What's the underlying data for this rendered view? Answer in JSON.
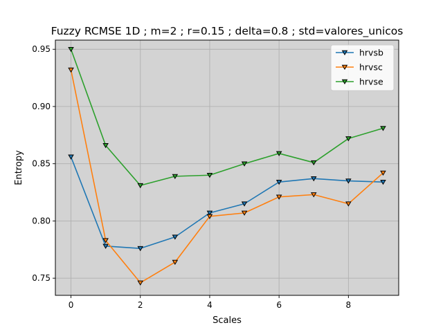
{
  "chart_data": {
    "type": "line",
    "title": "Fuzzy RCMSE 1D ; m=2 ; r=0.15 ; delta=0.8 ; std=valores_unicos",
    "xlabel": "Scales",
    "ylabel": "Entropy",
    "x": [
      0,
      1,
      2,
      3,
      4,
      5,
      6,
      7,
      8,
      9
    ],
    "xlim": [
      -0.45,
      9.45
    ],
    "ylim": [
      0.735,
      0.958
    ],
    "xticks": [
      0,
      2,
      4,
      6,
      8
    ],
    "yticks": [
      0.75,
      0.8,
      0.85,
      0.9,
      0.95
    ],
    "ytick_labels": [
      "0.75",
      "0.80",
      "0.85",
      "0.90",
      "0.95"
    ],
    "grid": true,
    "background": "#d3d3d3",
    "legend_position": "upper-right",
    "marker": "triangle-down",
    "series": [
      {
        "name": "hrvsb",
        "color": "#1f77b4",
        "values": [
          0.856,
          0.778,
          0.776,
          0.786,
          0.807,
          0.815,
          0.834,
          0.837,
          0.835,
          0.834
        ]
      },
      {
        "name": "hrvsc",
        "color": "#ff7f0e",
        "values": [
          0.932,
          0.783,
          0.746,
          0.764,
          0.804,
          0.807,
          0.821,
          0.823,
          0.815,
          0.842
        ]
      },
      {
        "name": "hrvse",
        "color": "#2ca02c",
        "values": [
          0.95,
          0.866,
          0.831,
          0.839,
          0.84,
          0.85,
          0.859,
          0.851,
          0.872,
          0.881
        ]
      }
    ]
  }
}
